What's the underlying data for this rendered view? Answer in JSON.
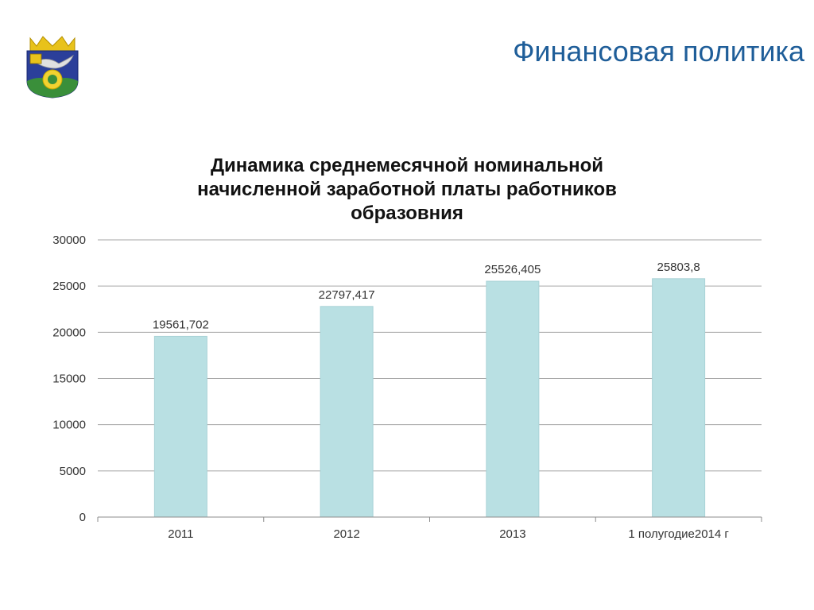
{
  "slide": {
    "title": "Финансовая политика"
  },
  "logo": {
    "icon": "coat-of-arms-icon",
    "colors": {
      "shield": "#2b3f9a",
      "crown": "#e8c21b",
      "sun": "#f2d230",
      "hill": "#3a8f3a",
      "bird": "#e0e0e0"
    }
  },
  "chart_data": {
    "type": "bar",
    "title_lines": [
      "Динамика среднемесячной номинальной",
      "начисленной заработной платы работников",
      "образовния"
    ],
    "categories": [
      "2011",
      "2012",
      "2013",
      "1 полугодие2014 г"
    ],
    "values": [
      19561.702,
      22797.417,
      25526.405,
      25803.8
    ],
    "data_labels": [
      "19561,702",
      "22797,417",
      "25526,405",
      "25803,8"
    ],
    "y_ticks": [
      "0",
      "5000",
      "10000",
      "15000",
      "20000",
      "25000",
      "30000"
    ],
    "ylim": [
      0,
      30000
    ],
    "y_step": 5000,
    "grid": true,
    "legend": "none",
    "xlabel": "",
    "ylabel": "",
    "colors": {
      "bar_fill": "#b9e0e3",
      "bar_stroke": "#a9d2d6",
      "grid": "#a6a6a6",
      "axis": "#8c8c8c"
    }
  }
}
